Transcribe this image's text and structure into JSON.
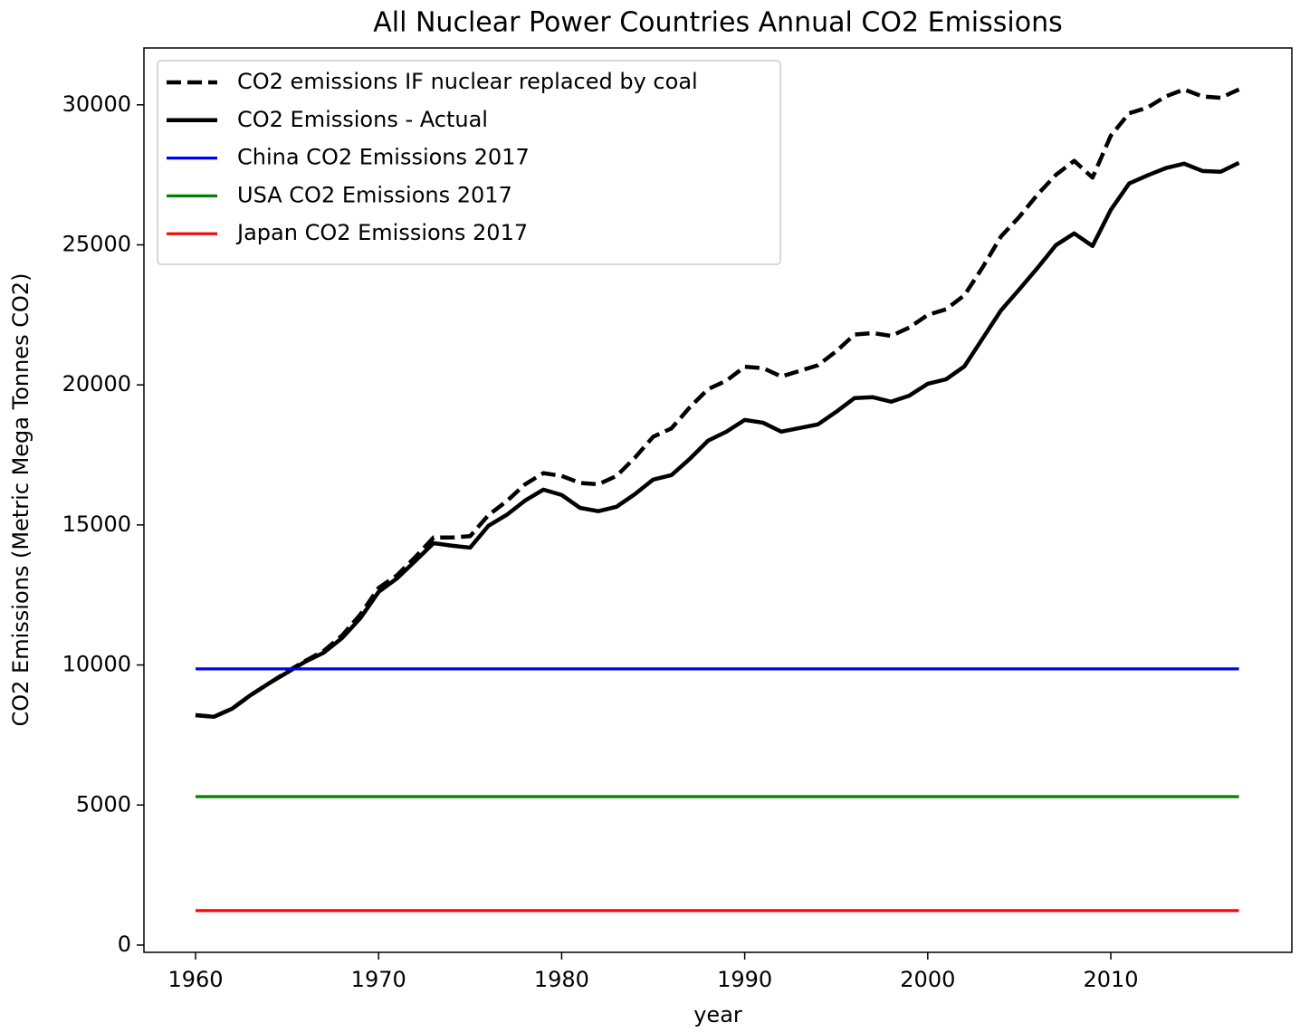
{
  "chart_data": {
    "type": "line",
    "title": "All Nuclear Power Countries Annual CO2 Emissions",
    "xlabel": "year",
    "ylabel": "CO2 Emissions (Metric Mega Tonnes CO2)",
    "x": [
      1960,
      1961,
      1962,
      1963,
      1964,
      1965,
      1966,
      1967,
      1968,
      1969,
      1970,
      1971,
      1972,
      1973,
      1974,
      1975,
      1976,
      1977,
      1978,
      1979,
      1980,
      1981,
      1982,
      1983,
      1984,
      1985,
      1986,
      1987,
      1988,
      1989,
      1990,
      1991,
      1992,
      1993,
      1994,
      1995,
      1996,
      1997,
      1998,
      1999,
      2000,
      2001,
      2002,
      2003,
      2004,
      2005,
      2006,
      2007,
      2008,
      2009,
      2010,
      2011,
      2012,
      2013,
      2014,
      2015,
      2016,
      2017
    ],
    "series": [
      {
        "name": "CO2 emissions IF nuclear replaced by coal",
        "color": "#000000",
        "linestyle": "dashed",
        "values": [
          8210,
          8150,
          8440,
          8920,
          9340,
          9760,
          10150,
          10500,
          11050,
          11800,
          12750,
          13200,
          13850,
          14550,
          14550,
          14600,
          15350,
          15850,
          16450,
          16850,
          16750,
          16500,
          16450,
          16750,
          17400,
          18150,
          18450,
          19200,
          19850,
          20150,
          20650,
          20600,
          20300,
          20500,
          20700,
          21200,
          21800,
          21850,
          21750,
          22050,
          22500,
          22700,
          23200,
          24200,
          25300,
          26000,
          26800,
          27500,
          28000,
          27400,
          28900,
          29700,
          29900,
          30300,
          30550,
          30300,
          30250,
          30550
        ]
      },
      {
        "name": "CO2 Emissions - Actual",
        "color": "#000000",
        "linestyle": "solid",
        "values": [
          8210,
          8150,
          8440,
          8920,
          9340,
          9730,
          10120,
          10440,
          10960,
          11670,
          12610,
          13090,
          13710,
          14350,
          14260,
          14190,
          14970,
          15360,
          15870,
          16260,
          16070,
          15610,
          15490,
          15650,
          16100,
          16620,
          16780,
          17360,
          18010,
          18330,
          18750,
          18650,
          18330,
          18460,
          18590,
          19040,
          19530,
          19560,
          19400,
          19620,
          20040,
          20200,
          20660,
          21660,
          22660,
          23410,
          24180,
          24990,
          25410,
          24960,
          26250,
          27190,
          27480,
          27740,
          27900,
          27640,
          27610,
          27930
        ]
      },
      {
        "name": "China CO2 Emissions 2017",
        "color": "#0000ff",
        "linestyle": "solid",
        "values": [
          9860,
          9860,
          9860,
          9860,
          9860,
          9860,
          9860,
          9860,
          9860,
          9860,
          9860,
          9860,
          9860,
          9860,
          9860,
          9860,
          9860,
          9860,
          9860,
          9860,
          9860,
          9860,
          9860,
          9860,
          9860,
          9860,
          9860,
          9860,
          9860,
          9860,
          9860,
          9860,
          9860,
          9860,
          9860,
          9860,
          9860,
          9860,
          9860,
          9860,
          9860,
          9860,
          9860,
          9860,
          9860,
          9860,
          9860,
          9860,
          9860,
          9860,
          9860,
          9860,
          9860,
          9860,
          9860,
          9860,
          9860,
          9860
        ]
      },
      {
        "name": "USA CO2 Emissions 2017",
        "color": "#008000",
        "linestyle": "solid",
        "values": [
          5300,
          5300,
          5300,
          5300,
          5300,
          5300,
          5300,
          5300,
          5300,
          5300,
          5300,
          5300,
          5300,
          5300,
          5300,
          5300,
          5300,
          5300,
          5300,
          5300,
          5300,
          5300,
          5300,
          5300,
          5300,
          5300,
          5300,
          5300,
          5300,
          5300,
          5300,
          5300,
          5300,
          5300,
          5300,
          5300,
          5300,
          5300,
          5300,
          5300,
          5300,
          5300,
          5300,
          5300,
          5300,
          5300,
          5300,
          5300,
          5300,
          5300,
          5300,
          5300,
          5300,
          5300,
          5300,
          5300,
          5300,
          5300
        ]
      },
      {
        "name": "Japan CO2 Emissions 2017",
        "color": "#ff0000",
        "linestyle": "solid",
        "values": [
          1230,
          1230,
          1230,
          1230,
          1230,
          1230,
          1230,
          1230,
          1230,
          1230,
          1230,
          1230,
          1230,
          1230,
          1230,
          1230,
          1230,
          1230,
          1230,
          1230,
          1230,
          1230,
          1230,
          1230,
          1230,
          1230,
          1230,
          1230,
          1230,
          1230,
          1230,
          1230,
          1230,
          1230,
          1230,
          1230,
          1230,
          1230,
          1230,
          1230,
          1230,
          1230,
          1230,
          1230,
          1230,
          1230,
          1230,
          1230,
          1230,
          1230,
          1230,
          1230,
          1230,
          1230,
          1230,
          1230,
          1230,
          1230
        ]
      }
    ],
    "xlim": [
      1957.18,
      2019.89
    ],
    "xticks": [
      1960,
      1970,
      1980,
      1990,
      2000,
      2010
    ],
    "ylim": [
      -260,
      32030
    ],
    "yticks": [
      0,
      5000,
      10000,
      15000,
      20000,
      25000,
      30000
    ],
    "legend": "upper left",
    "grid": false
  }
}
